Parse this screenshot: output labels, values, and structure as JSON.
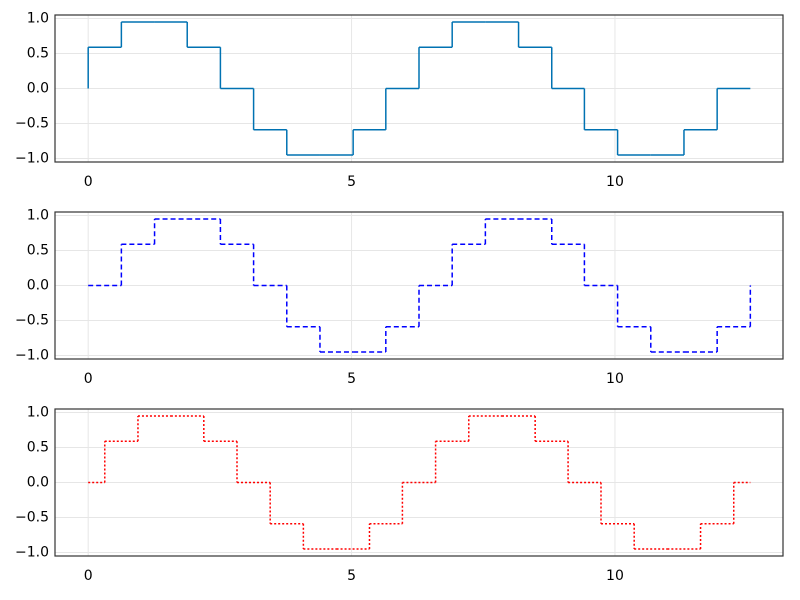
{
  "chart_data": [
    {
      "type": "line",
      "step": "pre",
      "color": "#0072b2",
      "dash": "solid",
      "grid": true,
      "x": [
        0,
        0.63,
        1.26,
        1.88,
        2.51,
        3.14,
        3.77,
        4.4,
        5.03,
        5.65,
        6.28,
        6.91,
        7.54,
        8.17,
        8.8,
        9.42,
        10.05,
        10.68,
        11.31,
        11.94,
        12.57
      ],
      "values": [
        0,
        0.59,
        0.95,
        0.95,
        0.59,
        0,
        -0.59,
        -0.95,
        -0.95,
        -0.59,
        0,
        0.59,
        0.95,
        0.95,
        0.59,
        0,
        -0.59,
        -0.95,
        -0.95,
        -0.59,
        0
      ],
      "xlim": [
        -0.63,
        13.19
      ],
      "ylim": [
        -1.05,
        1.05
      ],
      "xticks": [
        0,
        5,
        10
      ],
      "yticks": [
        {
          "value": -1,
          "label": "−1.0"
        },
        {
          "value": -0.5,
          "label": "−0.5"
        },
        {
          "value": 0,
          "label": "0.0"
        },
        0.5,
        {
          "value": 1,
          "label": "1.0"
        }
      ]
    },
    {
      "type": "line",
      "step": "post",
      "color": "#0000ff",
      "dash": "dashed",
      "grid": true,
      "x": [
        0,
        0.63,
        1.26,
        1.88,
        2.51,
        3.14,
        3.77,
        4.4,
        5.03,
        5.65,
        6.28,
        6.91,
        7.54,
        8.17,
        8.8,
        9.42,
        10.05,
        10.68,
        11.31,
        11.94,
        12.57
      ],
      "values": [
        0,
        0.59,
        0.95,
        0.95,
        0.59,
        0,
        -0.59,
        -0.95,
        -0.95,
        -0.59,
        0,
        0.59,
        0.95,
        0.95,
        0.59,
        0,
        -0.59,
        -0.95,
        -0.95,
        -0.59,
        0
      ],
      "xlim": [
        -0.63,
        13.19
      ],
      "ylim": [
        -1.05,
        1.05
      ],
      "xticks": [
        0,
        5,
        10
      ],
      "yticks": [
        {
          "value": -1,
          "label": "−1.0"
        },
        {
          "value": -0.5,
          "label": "−0.5"
        },
        {
          "value": 0,
          "label": "0.0"
        },
        0.5,
        {
          "value": 1,
          "label": "1.0"
        }
      ]
    },
    {
      "type": "line",
      "step": "mid",
      "color": "#ff0000",
      "dash": "dotted",
      "grid": true,
      "x": [
        0,
        0.63,
        1.26,
        1.88,
        2.51,
        3.14,
        3.77,
        4.4,
        5.03,
        5.65,
        6.28,
        6.91,
        7.54,
        8.17,
        8.8,
        9.42,
        10.05,
        10.68,
        11.31,
        11.94,
        12.57
      ],
      "values": [
        0,
        0.59,
        0.95,
        0.95,
        0.59,
        0,
        -0.59,
        -0.95,
        -0.95,
        -0.59,
        0,
        0.59,
        0.95,
        0.95,
        0.59,
        0,
        -0.59,
        -0.95,
        -0.95,
        -0.59,
        0
      ],
      "xlim": [
        -0.63,
        13.19
      ],
      "ylim": [
        -1.05,
        1.05
      ],
      "xticks": [
        0,
        5,
        10
      ],
      "yticks": [
        {
          "value": -1,
          "label": "−1.0"
        },
        {
          "value": -0.5,
          "label": "−0.5"
        },
        {
          "value": 0,
          "label": "0.0"
        },
        0.5,
        {
          "value": 1,
          "label": "1.0"
        }
      ]
    }
  ]
}
